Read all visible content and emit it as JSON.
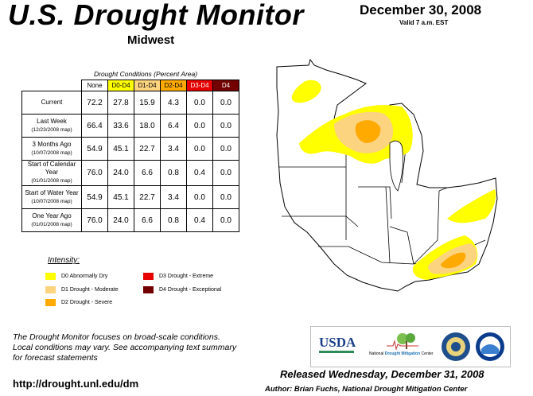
{
  "header": {
    "title": "U.S. Drought Monitor",
    "region": "Midwest",
    "date": "December 30, 2008",
    "valid": "Valid 7 a.m. EST"
  },
  "table": {
    "caption": "Drought Conditions (Percent Area)",
    "columns": [
      "None",
      "D0-D4",
      "D1-D4",
      "D2-D4",
      "D3-D4",
      "D4"
    ],
    "column_colors": [
      "#ffffff",
      "#ffff00",
      "#fcd37f",
      "#ffaa00",
      "#e60000",
      "#730000"
    ],
    "column_text_colors": [
      "#000000",
      "#000000",
      "#000000",
      "#000000",
      "#ffffff",
      "#ffffff"
    ],
    "rows": [
      {
        "label": "Current",
        "sub": "",
        "values": [
          "72.2",
          "27.8",
          "15.9",
          "4.3",
          "0.0",
          "0.0"
        ]
      },
      {
        "label": "Last Week",
        "sub": "(12/23/2008 map)",
        "values": [
          "66.4",
          "33.6",
          "18.0",
          "6.4",
          "0.0",
          "0.0"
        ]
      },
      {
        "label": "3 Months Ago",
        "sub": "(10/07/2008 map)",
        "values": [
          "54.9",
          "45.1",
          "22.7",
          "3.4",
          "0.0",
          "0.0"
        ]
      },
      {
        "label": "Start of Calendar Year",
        "sub": "(01/01/2008 map)",
        "values": [
          "76.0",
          "24.0",
          "6.6",
          "0.8",
          "0.4",
          "0.0"
        ]
      },
      {
        "label": "Start of Water Year",
        "sub": "(10/07/2008 map)",
        "values": [
          "54.9",
          "45.1",
          "22.7",
          "3.4",
          "0.0",
          "0.0"
        ]
      },
      {
        "label": "One Year Ago",
        "sub": "(01/01/2008 map)",
        "values": [
          "76.0",
          "24.0",
          "6.6",
          "0.8",
          "0.4",
          "0.0"
        ]
      }
    ]
  },
  "legend": {
    "title": "Intensity:",
    "items": [
      {
        "label": "D0 Abnormally Dry",
        "color": "#ffff00"
      },
      {
        "label": "D1 Drought - Moderate",
        "color": "#fcd37f"
      },
      {
        "label": "D2 Drought - Severe",
        "color": "#ffaa00"
      },
      {
        "label": "D3 Drought - Extreme",
        "color": "#e60000"
      },
      {
        "label": "D4 Drought - Exceptional",
        "color": "#730000"
      }
    ]
  },
  "note": [
    "The Drought Monitor focuses on broad-scale conditions.",
    "Local conditions may vary. See accompanying text summary",
    "for forecast statements"
  ],
  "footer": {
    "url": "http://drought.unl.edu/dm",
    "released": "Released Wednesday, December 31, 2008",
    "author": "Author: Brian Fuchs, National Drought Mitigation Center"
  },
  "logos": {
    "usda": "USDA",
    "ndmc_prefix": "National ",
    "ndmc_brand": "Drought Mitigation",
    "ndmc_suffix": " Center"
  }
}
